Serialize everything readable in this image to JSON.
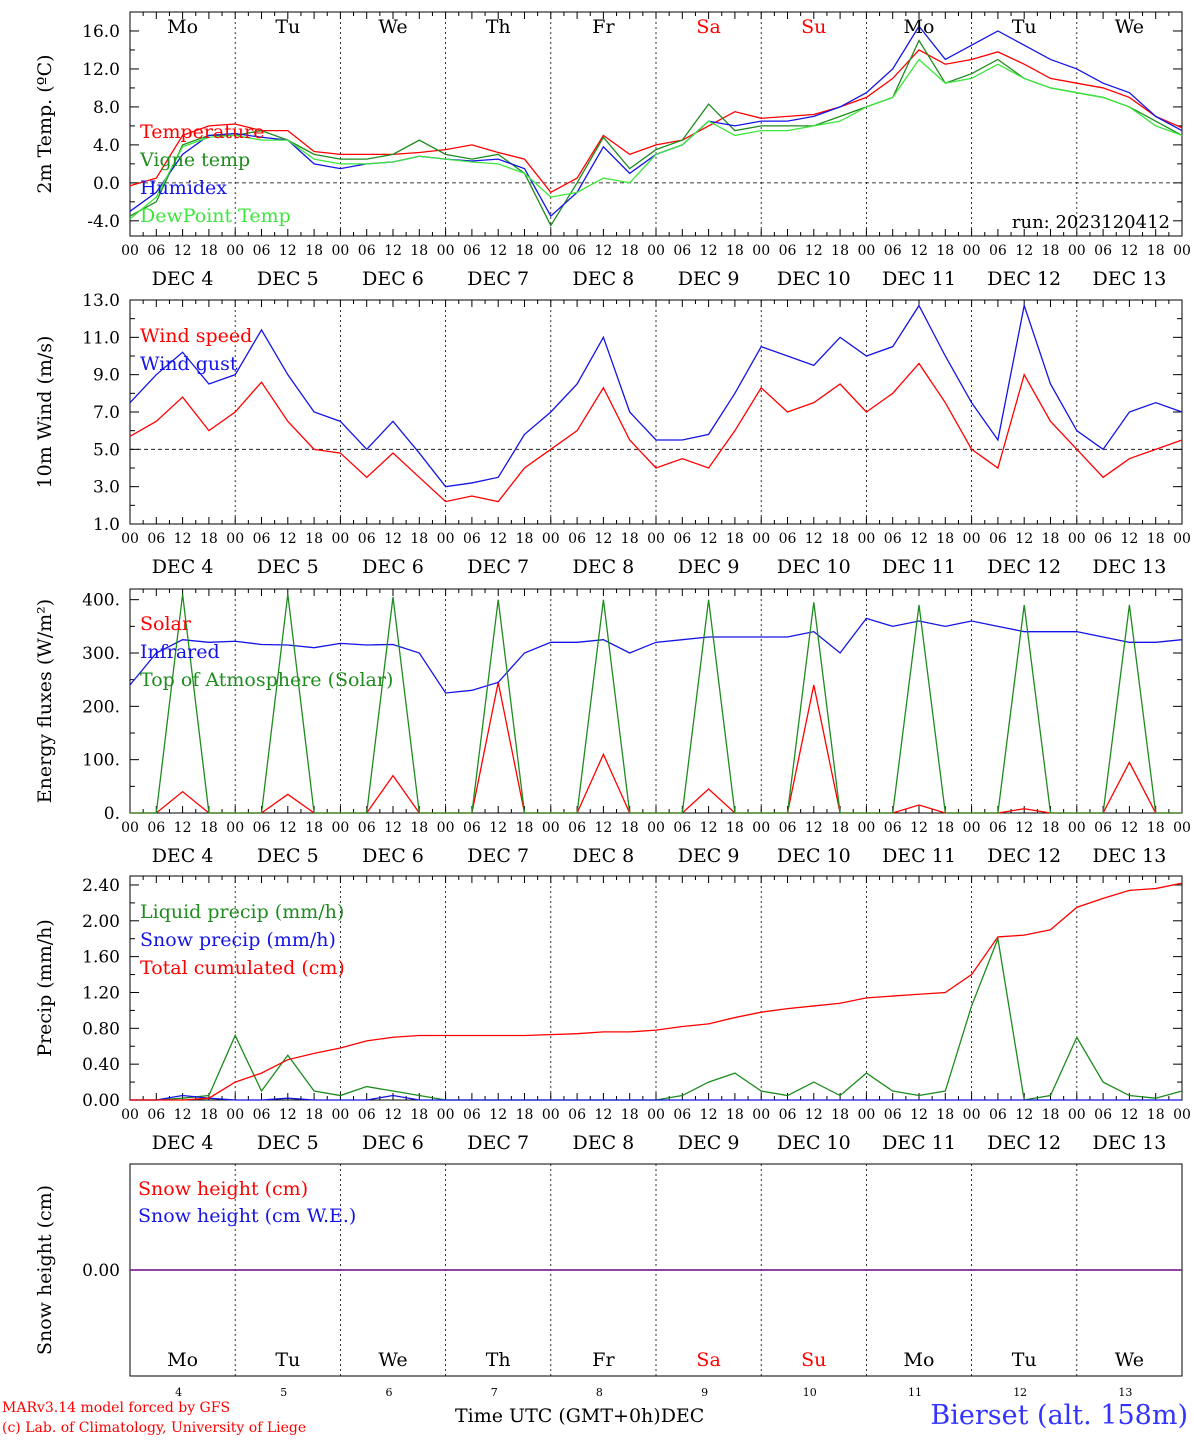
{
  "colors": {
    "red": "#ff0000",
    "green": "#1e8c1e",
    "blue": "#1414e6",
    "lightgreen": "#3ce63c",
    "purple": "#7b2a9a",
    "daylabel": "#000000",
    "weekend": "#ff0000"
  },
  "days": {
    "week_labels": [
      "Mo",
      "Tu",
      "We",
      "Th",
      "Fr",
      "Sa",
      "Su",
      "Mo",
      "Tu",
      "We"
    ],
    "weekend_flags": [
      false,
      false,
      false,
      false,
      false,
      true,
      true,
      false,
      false,
      false
    ],
    "date_labels": [
      "DEC  4",
      "DEC  5",
      "DEC  6",
      "DEC  7",
      "DEC  8",
      "DEC  9",
      "DEC 10",
      "DEC 11",
      "DEC 12",
      "DEC 13"
    ],
    "day_numbers": [
      "4",
      "5",
      "6",
      "7",
      "8",
      "9",
      "10",
      "11",
      "12",
      "13"
    ],
    "hour_ticks": [
      "00",
      "06",
      "12",
      "18"
    ],
    "final_tick": "00"
  },
  "chart_data": [
    {
      "type": "line",
      "ylabel": "2m Temp. (ºC)",
      "ylim": [
        -5.6,
        18.0
      ],
      "yticks": [
        "16.0",
        "12.0",
        "8.0",
        "4.0",
        "0.0",
        "-4.0"
      ],
      "ytick_values": [
        16,
        12,
        8,
        4,
        0,
        -4
      ],
      "dashed_ref": 0,
      "annotation": "run: 2023120412",
      "x_hours": [
        0,
        6,
        12,
        18,
        24,
        30,
        36,
        42,
        48,
        54,
        60,
        66,
        72,
        78,
        84,
        90,
        96,
        102,
        108,
        114,
        120,
        126,
        132,
        138,
        144,
        150,
        156,
        162,
        168,
        174,
        180,
        186,
        192,
        198,
        204,
        210,
        216,
        222,
        228,
        234,
        240
      ],
      "series": [
        {
          "name": "Temperature",
          "color": "#ff0000",
          "values": [
            -0.3,
            0.5,
            5.0,
            6.0,
            6.2,
            5.5,
            5.5,
            3.3,
            3.0,
            3.0,
            3.0,
            3.2,
            3.5,
            4.0,
            3.2,
            2.5,
            -1.0,
            0.5,
            5.0,
            3.0,
            4.0,
            4.5,
            6.0,
            7.5,
            6.8,
            7.0,
            7.2,
            8.0,
            9.0,
            11.0,
            14.0,
            12.5,
            13.0,
            13.8,
            12.5,
            11.0,
            10.5,
            10.0,
            9.0,
            7.0,
            5.8
          ]
        },
        {
          "name": "Vigne temp",
          "color": "#1e8c1e",
          "values": [
            -3.5,
            -2.0,
            4.0,
            5.0,
            5.0,
            5.5,
            4.5,
            3.0,
            2.5,
            2.5,
            3.0,
            4.5,
            3.0,
            2.5,
            3.0,
            1.0,
            -4.5,
            0.0,
            4.8,
            1.5,
            3.5,
            4.5,
            8.3,
            5.5,
            6.0,
            6.0,
            6.0,
            7.0,
            8.0,
            9.0,
            15.0,
            10.5,
            11.5,
            13.0,
            11.0,
            10.0,
            9.5,
            9.0,
            8.0,
            6.5,
            5.0
          ]
        },
        {
          "name": "Humidex",
          "color": "#1414e6",
          "values": [
            -3.0,
            -1.0,
            3.0,
            5.0,
            5.2,
            4.8,
            4.5,
            2.0,
            1.5,
            2.0,
            2.2,
            2.8,
            2.5,
            2.3,
            2.5,
            1.5,
            -3.5,
            -1.0,
            3.8,
            1.0,
            3.0,
            4.0,
            6.5,
            6.0,
            6.5,
            6.5,
            7.0,
            8.0,
            9.5,
            12.0,
            16.5,
            13.0,
            14.5,
            16.0,
            14.5,
            13.0,
            12.0,
            10.5,
            9.5,
            7.0,
            5.5
          ]
        },
        {
          "name": "DewPoint Temp",
          "color": "#3ce63c",
          "values": [
            -3.8,
            -1.5,
            3.8,
            4.8,
            5.0,
            4.5,
            4.5,
            2.5,
            2.0,
            2.0,
            2.2,
            2.8,
            2.5,
            2.2,
            2.0,
            1.0,
            -1.5,
            -1.0,
            0.5,
            0.0,
            3.0,
            4.0,
            6.5,
            5.0,
            5.5,
            5.5,
            6.0,
            6.5,
            8.0,
            9.0,
            13.0,
            10.5,
            11.0,
            12.5,
            11.0,
            10.0,
            9.5,
            9.0,
            8.0,
            6.0,
            5.0
          ]
        }
      ]
    },
    {
      "type": "line",
      "ylabel": "10m Wind (m/s)",
      "ylim": [
        1.0,
        13.0
      ],
      "yticks": [
        "13.0",
        "11.0",
        "9.0",
        "7.0",
        "5.0",
        "3.0",
        "1.0"
      ],
      "ytick_values": [
        13,
        11,
        9,
        7,
        5,
        3,
        1
      ],
      "dashed_ref": 5,
      "x_hours": [
        0,
        6,
        12,
        18,
        24,
        30,
        36,
        42,
        48,
        54,
        60,
        66,
        72,
        78,
        84,
        90,
        96,
        102,
        108,
        114,
        120,
        126,
        132,
        138,
        144,
        150,
        156,
        162,
        168,
        174,
        180,
        186,
        192,
        198,
        204,
        210,
        216,
        222,
        228,
        234,
        240
      ],
      "series": [
        {
          "name": "Wind speed",
          "color": "#ff0000",
          "values": [
            5.7,
            6.5,
            7.8,
            6.0,
            7.0,
            8.6,
            6.5,
            5.0,
            4.8,
            3.5,
            4.8,
            3.5,
            2.2,
            2.5,
            2.2,
            4.0,
            5.0,
            6.0,
            8.3,
            5.5,
            4.0,
            4.5,
            4.0,
            6.0,
            8.3,
            7.0,
            7.5,
            8.5,
            7.0,
            8.0,
            9.6,
            7.5,
            5.0,
            4.0,
            9.0,
            6.5,
            5.0,
            3.5,
            4.5,
            5.0,
            5.5
          ]
        },
        {
          "name": "Wind gust",
          "color": "#1414e6",
          "values": [
            7.5,
            9.0,
            10.2,
            8.5,
            9.0,
            11.4,
            9.0,
            7.0,
            6.5,
            5.0,
            6.5,
            4.8,
            3.0,
            3.2,
            3.5,
            5.8,
            7.0,
            8.5,
            11.0,
            7.0,
            5.5,
            5.5,
            5.8,
            8.0,
            10.5,
            10.0,
            9.5,
            11.0,
            10.0,
            10.5,
            12.7,
            10.0,
            7.5,
            5.5,
            12.7,
            8.5,
            6.0,
            5.0,
            7.0,
            7.5,
            7.0
          ]
        }
      ]
    },
    {
      "type": "line",
      "ylabel": "Energy fluxes (W/m²)",
      "ylim": [
        0,
        420
      ],
      "yticks": [
        "400.",
        "300.",
        "200.",
        "100.",
        "0."
      ],
      "ytick_values": [
        400,
        300,
        200,
        100,
        0
      ],
      "x_hours": [
        0,
        6,
        12,
        18,
        24,
        30,
        36,
        42,
        48,
        54,
        60,
        66,
        72,
        78,
        84,
        90,
        96,
        102,
        108,
        114,
        120,
        126,
        132,
        138,
        144,
        150,
        156,
        162,
        168,
        174,
        180,
        186,
        192,
        198,
        204,
        210,
        216,
        222,
        228,
        234,
        240
      ],
      "series": [
        {
          "name": "Solar",
          "color": "#ff0000",
          "values": [
            0,
            0,
            40,
            0,
            0,
            0,
            35,
            0,
            0,
            0,
            70,
            0,
            0,
            0,
            245,
            0,
            0,
            0,
            110,
            0,
            0,
            0,
            45,
            0,
            0,
            0,
            240,
            0,
            0,
            0,
            15,
            0,
            0,
            0,
            8,
            0,
            0,
            0,
            95,
            0,
            0
          ]
        },
        {
          "name": "Infrared",
          "color": "#1414e6",
          "values": [
            240,
            300,
            325,
            320,
            322,
            316,
            315,
            310,
            318,
            315,
            316,
            300,
            225,
            230,
            245,
            300,
            320,
            320,
            325,
            300,
            320,
            325,
            330,
            330,
            330,
            330,
            340,
            300,
            365,
            350,
            360,
            350,
            360,
            350,
            340,
            340,
            340,
            330,
            320,
            320,
            325
          ]
        },
        {
          "name": "Top of Atmosphere (Solar)",
          "color": "#1e8c1e",
          "values": [
            0,
            0,
            410,
            0,
            0,
            0,
            410,
            0,
            0,
            0,
            405,
            0,
            0,
            0,
            400,
            0,
            0,
            0,
            400,
            0,
            0,
            0,
            400,
            0,
            0,
            0,
            395,
            0,
            0,
            0,
            390,
            0,
            0,
            0,
            390,
            0,
            0,
            0,
            390,
            0,
            0
          ]
        }
      ]
    },
    {
      "type": "line",
      "ylabel": "Precip (mm/h)",
      "ylim": [
        0,
        2.5
      ],
      "yticks": [
        "2.40",
        "2.00",
        "1.60",
        "1.20",
        "0.80",
        "0.40",
        "0.00"
      ],
      "ytick_values": [
        2.4,
        2.0,
        1.6,
        1.2,
        0.8,
        0.4,
        0.0
      ],
      "x_hours": [
        0,
        6,
        12,
        18,
        24,
        30,
        36,
        42,
        48,
        54,
        60,
        66,
        72,
        78,
        84,
        90,
        96,
        102,
        108,
        114,
        120,
        126,
        132,
        138,
        144,
        150,
        156,
        162,
        168,
        174,
        180,
        186,
        192,
        198,
        204,
        210,
        216,
        222,
        228,
        234,
        240
      ],
      "series": [
        {
          "name": "Liquid precip (mm/h)",
          "color": "#1e8c1e",
          "values": [
            0,
            0,
            0.02,
            0.05,
            0.72,
            0.1,
            0.5,
            0.1,
            0.05,
            0.15,
            0.1,
            0.05,
            0,
            0,
            0,
            0,
            0,
            0,
            0,
            0,
            0,
            0.05,
            0.2,
            0.3,
            0.1,
            0.05,
            0.2,
            0.05,
            0.3,
            0.1,
            0.05,
            0.1,
            1.05,
            1.8,
            0,
            0.05,
            0.7,
            0.2,
            0.05,
            0.02,
            0.1
          ]
        },
        {
          "name": "Snow precip (mm/h)",
          "color": "#1414e6",
          "values": [
            0,
            0,
            0.05,
            0.02,
            0,
            0,
            0.02,
            0,
            0,
            0,
            0.05,
            0,
            0,
            0,
            0,
            0,
            0,
            0,
            0,
            0,
            0,
            0,
            0,
            0,
            0,
            0,
            0,
            0,
            0,
            0,
            0,
            0,
            0,
            0,
            0,
            0,
            0,
            0,
            0,
            0,
            0
          ]
        },
        {
          "name": "Total cumulated (cm)",
          "color": "#ff0000",
          "values": [
            0,
            0,
            0,
            0.02,
            0.2,
            0.3,
            0.45,
            0.52,
            0.58,
            0.66,
            0.7,
            0.72,
            0.72,
            0.72,
            0.72,
            0.72,
            0.73,
            0.74,
            0.76,
            0.76,
            0.78,
            0.82,
            0.85,
            0.92,
            0.98,
            1.02,
            1.05,
            1.08,
            1.14,
            1.16,
            1.18,
            1.2,
            1.4,
            1.82,
            1.84,
            1.9,
            2.15,
            2.25,
            2.34,
            2.36,
            2.42
          ]
        }
      ]
    },
    {
      "type": "line",
      "ylabel": "Snow height (cm)",
      "ylim": [
        -1,
        1
      ],
      "yticks": [
        "0.00"
      ],
      "ytick_values": [
        0
      ],
      "x_hours": [
        0,
        240
      ],
      "series": [
        {
          "name": "Snow height (cm)",
          "color": "#ff0000",
          "values": [
            0,
            0
          ]
        },
        {
          "name": "Snow height (cm W.E.)",
          "color": "#1414e6",
          "values": [
            0,
            0
          ]
        }
      ]
    }
  ],
  "footer": {
    "model": "MARv3.14 model forced by GFS",
    "credit": "(c) Lab. of Climatology, University of Liege",
    "xlabel": "Time UTC (GMT+0h)",
    "month": "DEC",
    "station": "Bierset (alt. 158m)"
  }
}
